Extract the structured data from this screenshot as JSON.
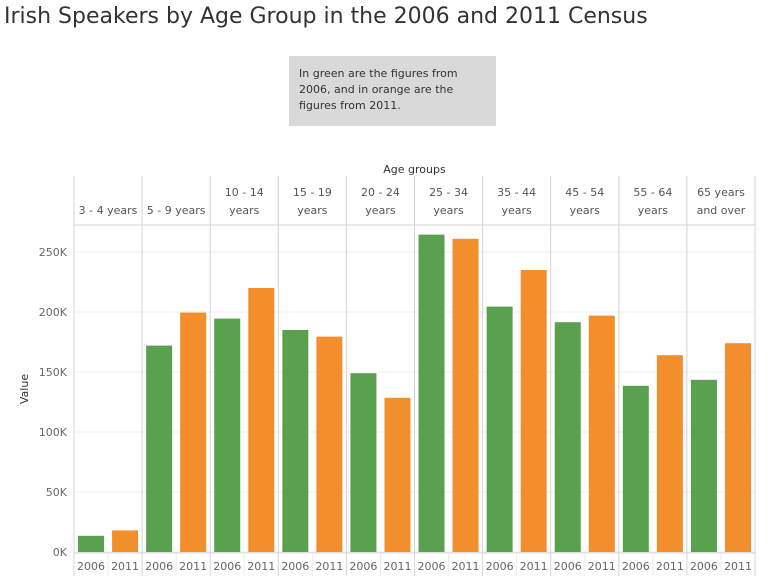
{
  "colors": {
    "y2006": "#59a14f",
    "y2011": "#f28e2b"
  },
  "chart_data": {
    "type": "bar",
    "title": "Irish Speakers by Age Group in the 2006 and 2011 Census",
    "annotation": "In green are the figures from 2006, and in orange are the figures from 2011.",
    "column_title": "Age groups",
    "ylabel": "Value",
    "ylim": [
      0,
      270000
    ],
    "yticks": [
      0,
      50000,
      100000,
      150000,
      200000,
      250000
    ],
    "ytick_labels": [
      "0K",
      "50K",
      "100K",
      "150K",
      "200K",
      "250K"
    ],
    "categories": [
      {
        "lines": [
          "3 - 4 years"
        ]
      },
      {
        "lines": [
          "5 - 9 years"
        ]
      },
      {
        "lines": [
          "10 - 14",
          "years"
        ]
      },
      {
        "lines": [
          "15 - 19",
          "years"
        ]
      },
      {
        "lines": [
          "20 - 24",
          "years"
        ]
      },
      {
        "lines": [
          "25 - 34",
          "years"
        ]
      },
      {
        "lines": [
          "35 - 44",
          "years"
        ]
      },
      {
        "lines": [
          "45 - 54",
          "years"
        ]
      },
      {
        "lines": [
          "55 - 64",
          "years"
        ]
      },
      {
        "lines": [
          "65 years",
          "and over"
        ]
      }
    ],
    "series": [
      {
        "name": "2006",
        "values": [
          13500,
          172000,
          194500,
          185000,
          149000,
          264500,
          204500,
          191500,
          138500,
          143500
        ]
      },
      {
        "name": "2011",
        "values": [
          18000,
          199500,
          220000,
          179500,
          128500,
          261000,
          235000,
          197000,
          164000,
          174000
        ]
      }
    ],
    "grid": true,
    "legend": "none"
  }
}
